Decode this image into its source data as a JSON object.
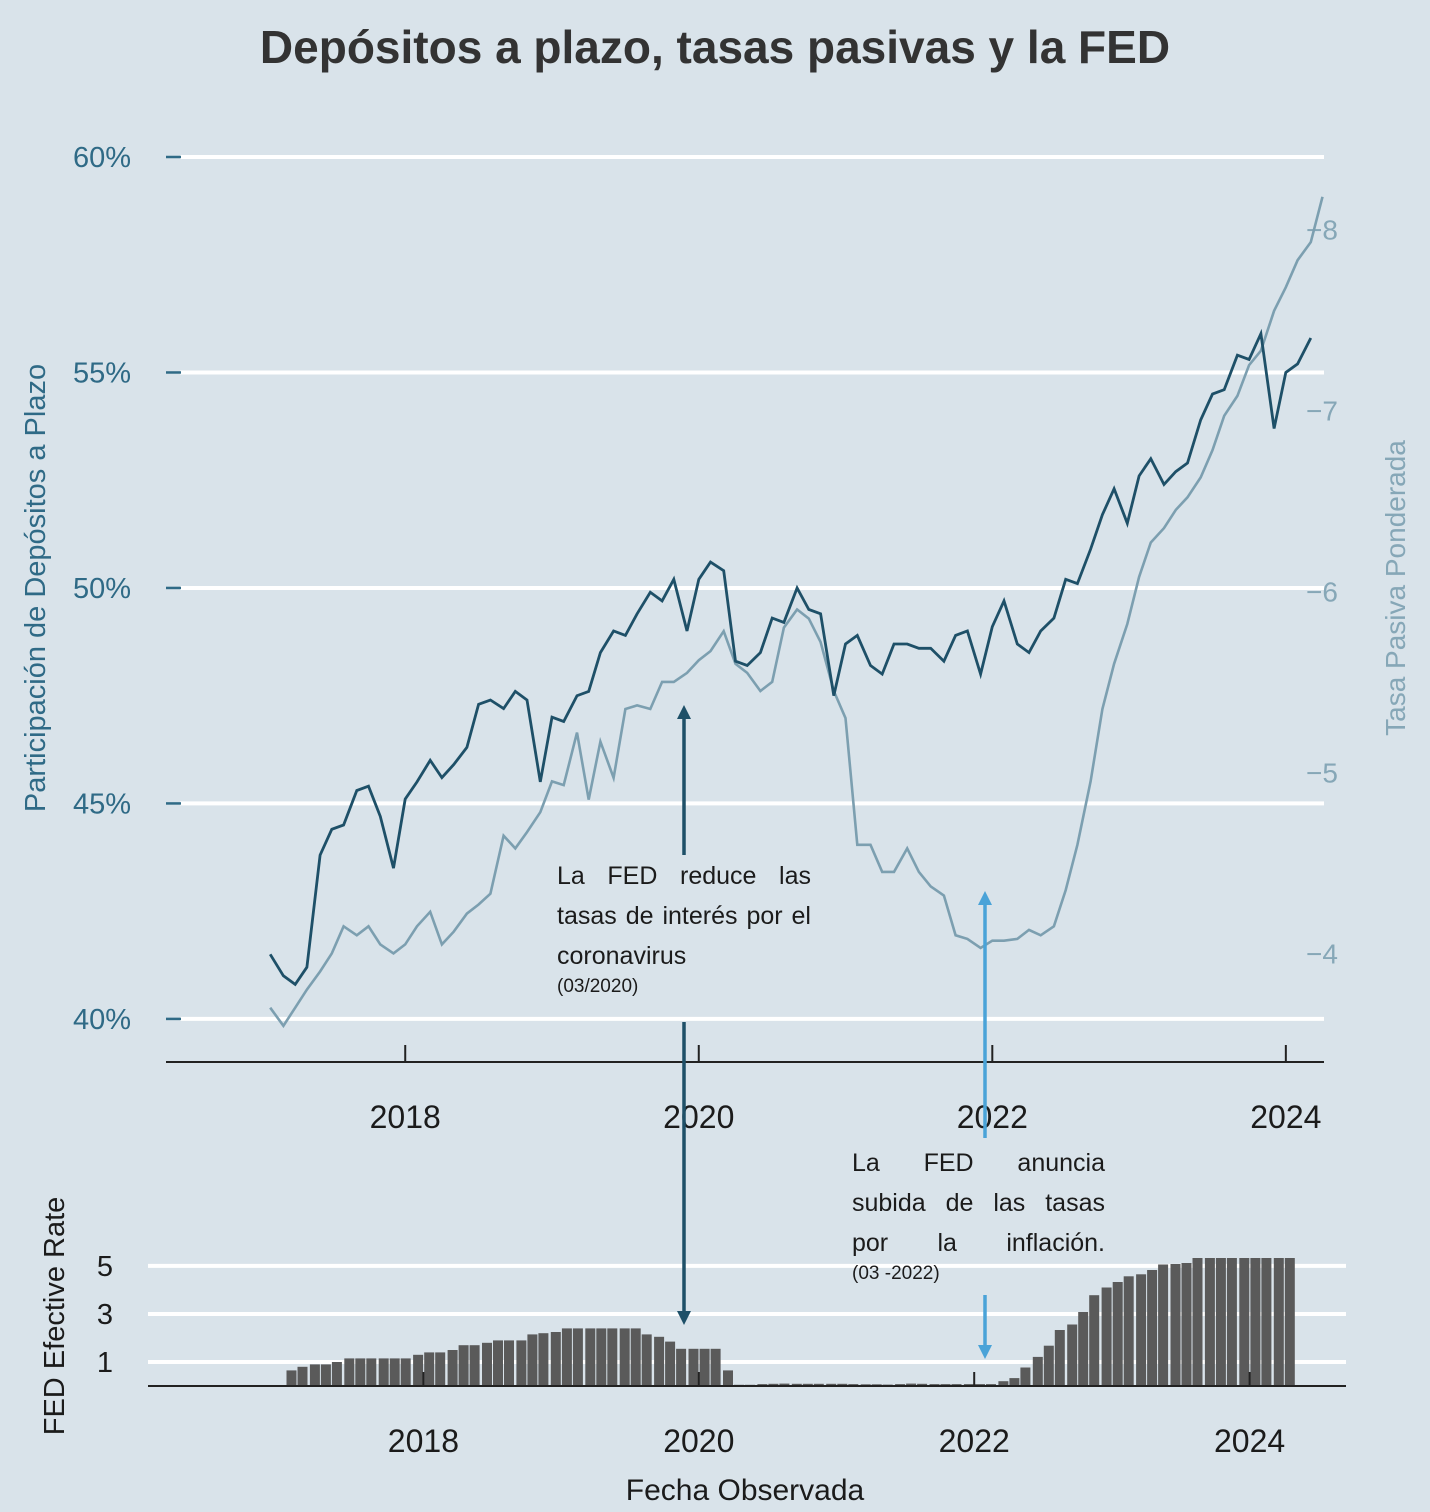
{
  "colors": {
    "background": "#d9e3ea",
    "participacion_line": "#1e5068",
    "tasa_line": "#7c9fb0",
    "bars": "#5a5a5a",
    "grid": "#ffffff",
    "arrow_dark": "#1e5068",
    "arrow_light": "#4aa3d8"
  },
  "chart_data": [
    {
      "type": "line",
      "title": "Depósitos a plazo, tasas pasivas y la FED",
      "ylabel": "Participación de Depósitos a Plazo",
      "y2label": "Tasa Pasiva Ponderada",
      "xlabel": "",
      "xlim": [
        2016.37,
        2024.26
      ],
      "ylim": [
        39.0,
        60.0
      ],
      "y2lim": [
        -3.4,
        -8.4
      ],
      "y_ticks": [
        "40%",
        "45%",
        "50%",
        "55%",
        "60%"
      ],
      "y_tick_values": [
        40,
        45,
        50,
        55,
        60
      ],
      "y2_ticks": [
        "−4",
        "−5",
        "−6",
        "−7",
        "−8"
      ],
      "y2_tick_values": [
        -4,
        -5,
        -6,
        -7,
        -8
      ],
      "x_ticks": [
        "2018",
        "2020",
        "2022",
        "2024"
      ],
      "x_tick_values": [
        2018,
        2020,
        2022,
        2024
      ],
      "grid": true,
      "series": [
        {
          "axis": "left",
          "points": [
            [
              2017.08,
              41.5
            ],
            [
              2017.17,
              41.0
            ],
            [
              2017.25,
              40.8
            ],
            [
              2017.33,
              41.2
            ],
            [
              2017.42,
              43.8
            ],
            [
              2017.5,
              44.4
            ],
            [
              2017.58,
              44.5
            ],
            [
              2017.67,
              45.3
            ],
            [
              2017.75,
              45.4
            ],
            [
              2017.83,
              44.7
            ],
            [
              2017.92,
              43.5
            ],
            [
              2018.0,
              45.1
            ],
            [
              2018.08,
              45.5
            ],
            [
              2018.17,
              46.0
            ],
            [
              2018.25,
              45.6
            ],
            [
              2018.33,
              45.9
            ],
            [
              2018.42,
              46.3
            ],
            [
              2018.5,
              47.3
            ],
            [
              2018.58,
              47.4
            ],
            [
              2018.67,
              47.2
            ],
            [
              2018.75,
              47.6
            ],
            [
              2018.83,
              47.4
            ],
            [
              2018.92,
              45.5
            ],
            [
              2019.0,
              47.0
            ],
            [
              2019.08,
              46.9
            ],
            [
              2019.17,
              47.5
            ],
            [
              2019.25,
              47.6
            ],
            [
              2019.33,
              48.5
            ],
            [
              2019.42,
              49.0
            ],
            [
              2019.5,
              48.9
            ],
            [
              2019.58,
              49.4
            ],
            [
              2019.67,
              49.9
            ],
            [
              2019.75,
              49.7
            ],
            [
              2019.83,
              50.2
            ],
            [
              2019.92,
              49.0
            ],
            [
              2020.0,
              50.2
            ],
            [
              2020.08,
              50.6
            ],
            [
              2020.17,
              50.4
            ],
            [
              2020.25,
              48.3
            ],
            [
              2020.33,
              48.2
            ],
            [
              2020.42,
              48.5
            ],
            [
              2020.5,
              49.3
            ],
            [
              2020.58,
              49.2
            ],
            [
              2020.67,
              50.0
            ],
            [
              2020.75,
              49.5
            ],
            [
              2020.83,
              49.4
            ],
            [
              2020.92,
              47.5
            ],
            [
              2021.0,
              48.7
            ],
            [
              2021.08,
              48.9
            ],
            [
              2021.17,
              48.2
            ],
            [
              2021.25,
              48.0
            ],
            [
              2021.33,
              48.7
            ],
            [
              2021.42,
              48.7
            ],
            [
              2021.5,
              48.6
            ],
            [
              2021.58,
              48.6
            ],
            [
              2021.67,
              48.3
            ],
            [
              2021.75,
              48.9
            ],
            [
              2021.83,
              49.0
            ],
            [
              2021.92,
              48.0
            ],
            [
              2022.0,
              49.1
            ],
            [
              2022.08,
              49.7
            ],
            [
              2022.17,
              48.7
            ],
            [
              2022.25,
              48.5
            ],
            [
              2022.33,
              49.0
            ],
            [
              2022.42,
              49.3
            ],
            [
              2022.5,
              50.2
            ],
            [
              2022.58,
              50.1
            ],
            [
              2022.67,
              50.9
            ],
            [
              2022.75,
              51.7
            ],
            [
              2022.83,
              52.3
            ],
            [
              2022.92,
              51.5
            ],
            [
              2023.0,
              52.6
            ],
            [
              2023.08,
              53.0
            ],
            [
              2023.17,
              52.4
            ],
            [
              2023.25,
              52.7
            ],
            [
              2023.33,
              52.9
            ],
            [
              2023.42,
              53.9
            ],
            [
              2023.5,
              54.5
            ],
            [
              2023.58,
              54.6
            ],
            [
              2023.67,
              55.4
            ],
            [
              2023.75,
              55.3
            ],
            [
              2023.83,
              55.9
            ],
            [
              2023.92,
              53.7
            ],
            [
              2024.0,
              55.0
            ],
            [
              2024.08,
              55.2
            ],
            [
              2024.17,
              55.8
            ]
          ]
        },
        {
          "axis": "right",
          "points": [
            [
              2017.08,
              -3.7
            ],
            [
              2017.17,
              -3.6
            ],
            [
              2017.25,
              -3.7
            ],
            [
              2017.33,
              -3.8
            ],
            [
              2017.42,
              -3.9
            ],
            [
              2017.5,
              -4.0
            ],
            [
              2017.58,
              -4.15
            ],
            [
              2017.67,
              -4.1
            ],
            [
              2017.75,
              -4.15
            ],
            [
              2017.83,
              -4.05
            ],
            [
              2017.92,
              -4.0
            ],
            [
              2018.0,
              -4.05
            ],
            [
              2018.08,
              -4.15
            ],
            [
              2018.17,
              -4.23
            ],
            [
              2018.25,
              -4.05
            ],
            [
              2018.33,
              -4.12
            ],
            [
              2018.42,
              -4.22
            ],
            [
              2018.5,
              -4.27
            ],
            [
              2018.58,
              -4.33
            ],
            [
              2018.67,
              -4.65
            ],
            [
              2018.75,
              -4.58
            ],
            [
              2018.83,
              -4.67
            ],
            [
              2018.92,
              -4.78
            ],
            [
              2019.0,
              -4.95
            ],
            [
              2019.08,
              -4.93
            ],
            [
              2019.17,
              -5.22
            ],
            [
              2019.25,
              -4.85
            ],
            [
              2019.33,
              -5.17
            ],
            [
              2019.42,
              -4.97
            ],
            [
              2019.5,
              -5.35
            ],
            [
              2019.58,
              -5.37
            ],
            [
              2019.67,
              -5.35
            ],
            [
              2019.75,
              -5.5
            ],
            [
              2019.83,
              -5.5
            ],
            [
              2019.92,
              -5.55
            ],
            [
              2020.0,
              -5.62
            ],
            [
              2020.08,
              -5.67
            ],
            [
              2020.17,
              -5.78
            ],
            [
              2020.25,
              -5.6
            ],
            [
              2020.33,
              -5.55
            ],
            [
              2020.42,
              -5.45
            ],
            [
              2020.5,
              -5.5
            ],
            [
              2020.58,
              -5.8
            ],
            [
              2020.67,
              -5.9
            ],
            [
              2020.75,
              -5.85
            ],
            [
              2020.83,
              -5.72
            ],
            [
              2020.92,
              -5.45
            ],
            [
              2021.0,
              -5.3
            ],
            [
              2021.08,
              -4.6
            ],
            [
              2021.17,
              -4.6
            ],
            [
              2021.25,
              -4.45
            ],
            [
              2021.33,
              -4.45
            ],
            [
              2021.42,
              -4.58
            ],
            [
              2021.5,
              -4.45
            ],
            [
              2021.58,
              -4.37
            ],
            [
              2021.67,
              -4.32
            ],
            [
              2021.75,
              -4.1
            ],
            [
              2021.83,
              -4.08
            ],
            [
              2021.92,
              -4.03
            ],
            [
              2022.0,
              -4.07
            ],
            [
              2022.08,
              -4.07
            ],
            [
              2022.17,
              -4.08
            ],
            [
              2022.25,
              -4.13
            ],
            [
              2022.33,
              -4.1
            ],
            [
              2022.42,
              -4.15
            ],
            [
              2022.5,
              -4.35
            ],
            [
              2022.58,
              -4.6
            ],
            [
              2022.67,
              -4.95
            ],
            [
              2022.75,
              -5.35
            ],
            [
              2022.83,
              -5.6
            ],
            [
              2022.92,
              -5.82
            ],
            [
              2023.0,
              -6.08
            ],
            [
              2023.08,
              -6.27
            ],
            [
              2023.17,
              -6.35
            ],
            [
              2023.25,
              -6.45
            ],
            [
              2023.33,
              -6.52
            ],
            [
              2023.42,
              -6.63
            ],
            [
              2023.5,
              -6.78
            ],
            [
              2023.58,
              -6.97
            ],
            [
              2023.67,
              -7.08
            ],
            [
              2023.75,
              -7.25
            ],
            [
              2023.83,
              -7.33
            ],
            [
              2023.92,
              -7.55
            ],
            [
              2024.0,
              -7.68
            ],
            [
              2024.08,
              -7.83
            ],
            [
              2024.17,
              -7.93
            ],
            [
              2024.25,
              -8.18
            ]
          ]
        }
      ]
    },
    {
      "type": "bar",
      "ylabel": "FED Efective Rate",
      "xlabel": "Fecha Observada",
      "xlim": [
        2016.0,
        2024.7
      ],
      "ylim": [
        0,
        6
      ],
      "y_ticks": [
        "1",
        "3",
        "5"
      ],
      "y_tick_values": [
        1,
        3,
        5
      ],
      "x_ticks": [
        "2018",
        "2020",
        "2022",
        "2024"
      ],
      "x_tick_values": [
        2018,
        2020,
        2022,
        2024
      ],
      "grid": true,
      "x": [
        2017.0,
        2017.08,
        2017.17,
        2017.25,
        2017.33,
        2017.42,
        2017.5,
        2017.58,
        2017.67,
        2017.75,
        2017.83,
        2017.92,
        2018.0,
        2018.08,
        2018.17,
        2018.25,
        2018.33,
        2018.42,
        2018.5,
        2018.58,
        2018.67,
        2018.75,
        2018.83,
        2018.92,
        2019.0,
        2019.08,
        2019.17,
        2019.25,
        2019.33,
        2019.42,
        2019.5,
        2019.58,
        2019.67,
        2019.75,
        2019.83,
        2019.92,
        2020.0,
        2020.08,
        2020.17,
        2020.25,
        2020.33,
        2020.42,
        2020.5,
        2020.58,
        2020.67,
        2020.75,
        2020.83,
        2020.92,
        2021.0,
        2021.08,
        2021.17,
        2021.25,
        2021.33,
        2021.42,
        2021.5,
        2021.58,
        2021.67,
        2021.75,
        2021.83,
        2021.92,
        2022.0,
        2022.08,
        2022.17,
        2022.25,
        2022.33,
        2022.42,
        2022.5,
        2022.58,
        2022.67,
        2022.75,
        2022.83,
        2022.92,
        2023.0,
        2023.08,
        2023.17,
        2023.25,
        2023.33,
        2023.42,
        2023.5,
        2023.58,
        2023.67,
        2023.75,
        2023.83,
        2023.92,
        2024.0,
        2024.08,
        2024.17,
        2024.25
      ],
      "values": [
        0.65,
        0.8,
        0.9,
        0.9,
        1.0,
        1.15,
        1.15,
        1.15,
        1.15,
        1.15,
        1.15,
        1.3,
        1.4,
        1.4,
        1.5,
        1.7,
        1.7,
        1.8,
        1.9,
        1.9,
        1.9,
        2.15,
        2.2,
        2.25,
        2.4,
        2.4,
        2.4,
        2.4,
        2.4,
        2.4,
        2.4,
        2.15,
        2.05,
        1.85,
        1.55,
        1.55,
        1.55,
        1.55,
        0.65,
        0.05,
        0.05,
        0.08,
        0.09,
        0.1,
        0.09,
        0.09,
        0.09,
        0.09,
        0.09,
        0.08,
        0.07,
        0.07,
        0.06,
        0.08,
        0.1,
        0.09,
        0.08,
        0.08,
        0.08,
        0.08,
        0.08,
        0.08,
        0.2,
        0.33,
        0.77,
        1.21,
        1.68,
        2.33,
        2.56,
        3.08,
        3.78,
        4.1,
        4.33,
        4.57,
        4.65,
        4.83,
        5.06,
        5.08,
        5.12,
        5.33,
        5.33,
        5.33,
        5.33,
        5.33,
        5.33,
        5.33,
        5.33,
        5.33
      ]
    }
  ],
  "annotations": [
    {
      "text": "La FED reduce las tasas de interés por el coronavirus",
      "date": "(03/2020)"
    },
    {
      "text": "La FED anuncia subida de las tasas por la inflación.",
      "date": "(03 -2022)"
    }
  ]
}
